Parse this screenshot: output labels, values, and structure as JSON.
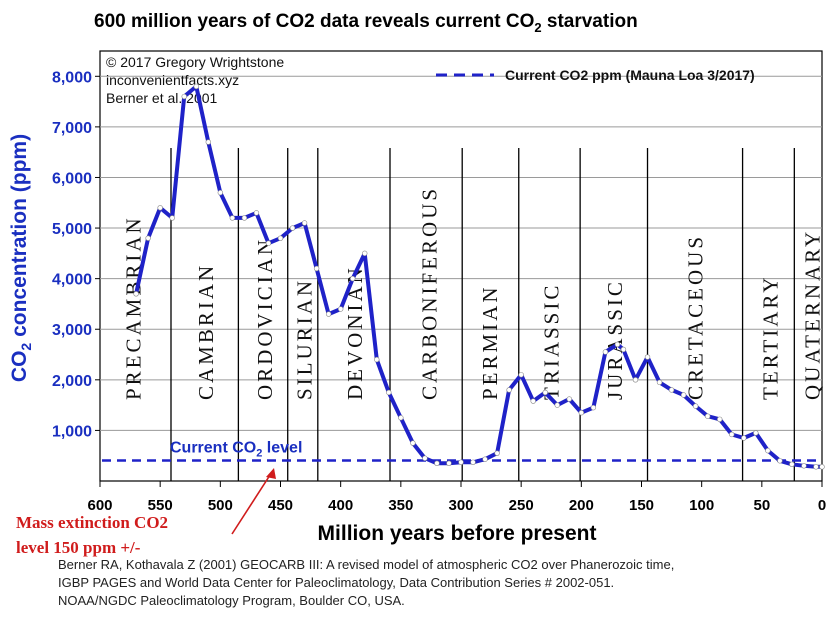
{
  "chart_data": {
    "type": "line",
    "title_main": "600 million years of CO2 data reveals current CO",
    "title_sub": "2",
    "title_end": " starvation",
    "credits": [
      "© 2017 Gregory Wrightstone",
      "inconvenientfacts.xyz",
      "Berner et al. 2001"
    ],
    "legend": {
      "label": "Current CO2 ppm (Mauna Loa 3/2017)",
      "position": "top-right",
      "style": "dashed"
    },
    "xlabel": "Million years before present",
    "ylabel": {
      "a": "CO",
      "sub": "2",
      "b": " concentration (ppm)"
    },
    "x_reversed": true,
    "xlim": [
      600,
      0
    ],
    "ylim": [
      0,
      8500
    ],
    "xticks": [
      600,
      550,
      500,
      450,
      400,
      350,
      300,
      250,
      200,
      150,
      100,
      50,
      0
    ],
    "xtick_labels": [
      "600",
      "550",
      "500",
      "450",
      "400",
      "350",
      "300",
      "250",
      "200",
      "150",
      "100",
      "50",
      "0"
    ],
    "yticks": [
      1000,
      2000,
      3000,
      4000,
      5000,
      6000,
      7000,
      8000
    ],
    "ytick_labels": [
      "1,000",
      "2,000",
      "3,000",
      "4,000",
      "5,000",
      "6,000",
      "7,000",
      "8,000"
    ],
    "grid": true,
    "series": [
      {
        "color": "#1f22c8",
        "x": [
          570,
          560,
          550,
          540,
          530,
          520,
          510,
          500,
          490,
          480,
          470,
          460,
          450,
          440,
          430,
          420,
          410,
          400,
          390,
          380,
          370,
          360,
          350,
          340,
          330,
          320,
          310,
          300,
          290,
          280,
          270,
          260,
          250,
          240,
          230,
          220,
          210,
          200,
          190,
          180,
          170,
          165,
          155,
          145,
          135,
          125,
          115,
          105,
          95,
          85,
          75,
          65,
          55,
          45,
          35,
          25,
          15,
          5,
          0
        ],
        "y": [
          3700,
          4800,
          5400,
          5200,
          7600,
          7800,
          6700,
          5700,
          5200,
          5200,
          5300,
          4700,
          4800,
          5000,
          5100,
          4200,
          3300,
          3400,
          4000,
          4500,
          2400,
          1750,
          1250,
          750,
          450,
          350,
          350,
          370,
          370,
          430,
          550,
          1800,
          2100,
          1580,
          1750,
          1500,
          1620,
          1350,
          1450,
          2550,
          2700,
          2600,
          2000,
          2450,
          1950,
          1800,
          1700,
          1480,
          1280,
          1220,
          920,
          850,
          950,
          600,
          400,
          330,
          300,
          280,
          280
        ]
      }
    ],
    "reference_line": {
      "y": 405,
      "label_main": "Current CO",
      "label_sub": "2",
      "label_end": " level",
      "style": "dashed"
    },
    "period_boundaries": [
      541,
      485,
      444,
      419,
      359,
      299,
      252,
      201,
      145,
      66,
      23
    ],
    "periods": [
      {
        "label": "PRECAMBRIAN",
        "x": 572
      },
      {
        "label": "CAMBRIAN",
        "x": 512
      },
      {
        "label": "ORDOVICIAN",
        "x": 463
      },
      {
        "label": "SILURIAN",
        "x": 430
      },
      {
        "label": "DEVONIAN",
        "x": 388
      },
      {
        "label": "CARBONIFEROUS",
        "x": 326
      },
      {
        "label": "PERMIAN",
        "x": 276
      },
      {
        "label": "TRIASSIC",
        "x": 225
      },
      {
        "label": "JURASSIC",
        "x": 172
      },
      {
        "label": "CRETACEOUS",
        "x": 105
      },
      {
        "label": "TERTIARY",
        "x": 43
      },
      {
        "label": "QUATERNARY",
        "x": 8
      }
    ]
  },
  "annotation": {
    "line1": "Mass extinction CO2",
    "line2": "level 150 ppm +/-"
  },
  "reference": [
    "Berner RA, Kothavala Z (2001) GEOCARB III: A revised model of atmospheric CO2 over Phanerozoic time,",
    "IGBP PAGES and World Data Center for Paleoclimatology, Data Contribution Series # 2002-051.",
    "NOAA/NGDC Paleoclimatology Program, Boulder CO, USA."
  ]
}
